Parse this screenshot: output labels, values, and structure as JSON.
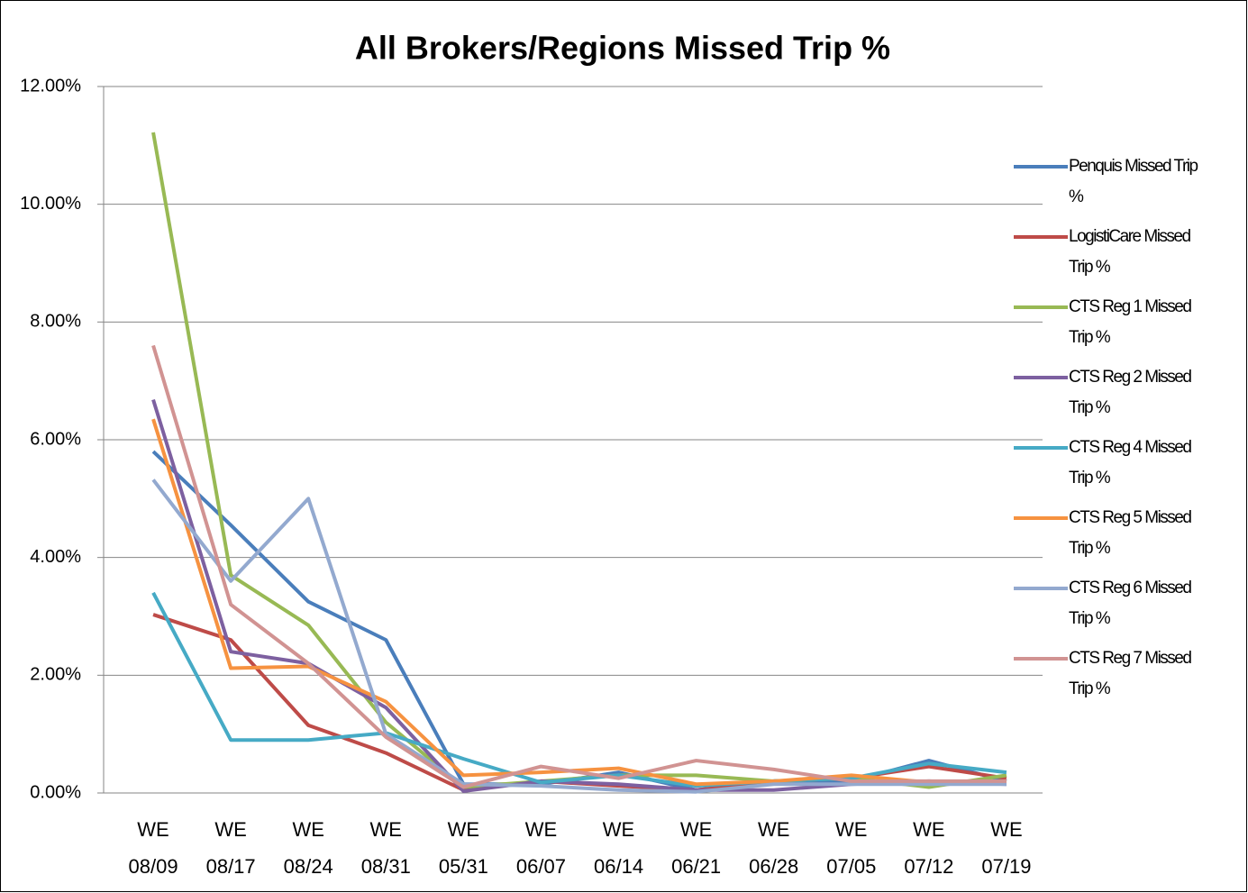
{
  "chart_data": {
    "type": "line",
    "title": "All Brokers/Regions Missed Trip %",
    "categories": [
      "WE 08/09",
      "WE 08/17",
      "WE 08/24",
      "WE 08/31",
      "WE 05/31",
      "WE 06/07",
      "WE 06/14",
      "WE 06/21",
      "WE 06/28",
      "WE 07/05",
      "WE 07/12",
      "WE 07/19"
    ],
    "series": [
      {
        "name": "Penquis Missed Trip %",
        "color": "#4a7ebb",
        "values": [
          5.8,
          4.55,
          3.25,
          2.6,
          0.15,
          0.15,
          0.35,
          0.05,
          0.2,
          0.2,
          0.55,
          0.2
        ]
      },
      {
        "name": "LogistiCare Missed Trip %",
        "color": "#be4b48",
        "values": [
          3.03,
          2.6,
          1.15,
          0.68,
          0.05,
          0.2,
          0.12,
          0.05,
          0.2,
          0.25,
          0.45,
          0.25
        ]
      },
      {
        "name": "CTS Reg 1 Missed Trip %",
        "color": "#98b954",
        "values": [
          11.22,
          3.7,
          2.85,
          1.2,
          0.1,
          0.2,
          0.3,
          0.3,
          0.2,
          0.25,
          0.1,
          0.3
        ]
      },
      {
        "name": "CTS Reg 2 Missed Trip %",
        "color": "#7d60a0",
        "values": [
          6.68,
          2.4,
          2.2,
          1.45,
          0.03,
          0.2,
          0.15,
          0.05,
          0.05,
          0.15,
          0.2,
          0.15
        ]
      },
      {
        "name": "CTS Reg 4 Missed Trip %",
        "color": "#46aac5",
        "values": [
          3.4,
          0.9,
          0.9,
          1.02,
          0.58,
          0.18,
          0.3,
          0.12,
          0.2,
          0.25,
          0.5,
          0.35
        ]
      },
      {
        "name": "CTS Reg 5 Missed Trip %",
        "color": "#f69240",
        "values": [
          6.35,
          2.12,
          2.15,
          1.55,
          0.3,
          0.35,
          0.42,
          0.15,
          0.2,
          0.3,
          0.18,
          0.2
        ]
      },
      {
        "name": "CTS Reg 6 Missed Trip %",
        "color": "#93a9cf",
        "values": [
          5.32,
          3.6,
          5.0,
          1.0,
          0.15,
          0.12,
          0.05,
          0.02,
          0.15,
          0.15,
          0.15,
          0.15
        ]
      },
      {
        "name": "CTS Reg 7 Missed Trip %",
        "color": "#d19392",
        "values": [
          7.6,
          3.2,
          2.2,
          0.95,
          0.1,
          0.45,
          0.25,
          0.55,
          0.4,
          0.2,
          0.2,
          0.2
        ]
      }
    ],
    "ylim": [
      0,
      12
    ],
    "yticks": [
      {
        "value": 0,
        "label": "0.00%"
      },
      {
        "value": 2,
        "label": "2.00%"
      },
      {
        "value": 4,
        "label": "4.00%"
      },
      {
        "value": 6,
        "label": "6.00%"
      },
      {
        "value": 8,
        "label": "8.00%"
      },
      {
        "value": 10,
        "label": "10.00%"
      },
      {
        "value": 12,
        "label": "12.00%"
      }
    ],
    "grid": true,
    "legend": "right"
  }
}
